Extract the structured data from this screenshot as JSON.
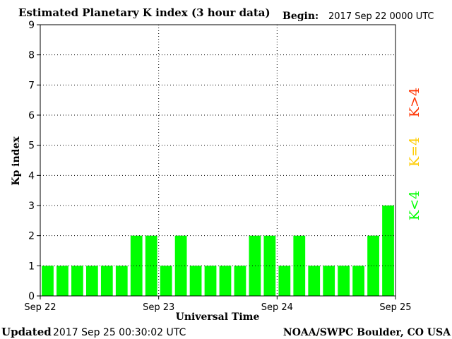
{
  "header": {
    "title": "Estimated Planetary K index (3 hour data)",
    "begin_label": "Begin:",
    "begin_value": "2017 Sep 22 0000 UTC"
  },
  "footer": {
    "updated_label": "Updated",
    "updated_value": "2017 Sep 25 00:30:02 UTC",
    "credit": "NOAA/SWPC Boulder, CO USA"
  },
  "legend": {
    "high": "K>4",
    "mid": "K=4",
    "low": "K<4"
  },
  "colors": {
    "bar_low": "#00ff00",
    "bar_mid": "#ffcc00",
    "bar_high": "#ff3300",
    "axis": "#000000",
    "grid": "#000000",
    "background": "#ffffff"
  },
  "chart_data": {
    "type": "bar",
    "title": "Estimated Planetary K index (3 hour data)",
    "xlabel": "Universal Time",
    "ylabel": "Kp index",
    "ylim": [
      0,
      9
    ],
    "yticks": [
      0,
      1,
      2,
      3,
      4,
      5,
      6,
      7,
      8,
      9
    ],
    "xticks": [
      "Sep 22",
      "Sep 23",
      "Sep 24",
      "Sep 25"
    ],
    "bins_per_day": 8,
    "grid": true,
    "values": [
      1,
      1,
      1,
      1,
      1,
      1,
      2,
      2,
      1,
      2,
      1,
      1,
      1,
      1,
      2,
      2,
      1,
      2,
      1,
      1,
      1,
      1,
      2,
      3
    ]
  }
}
